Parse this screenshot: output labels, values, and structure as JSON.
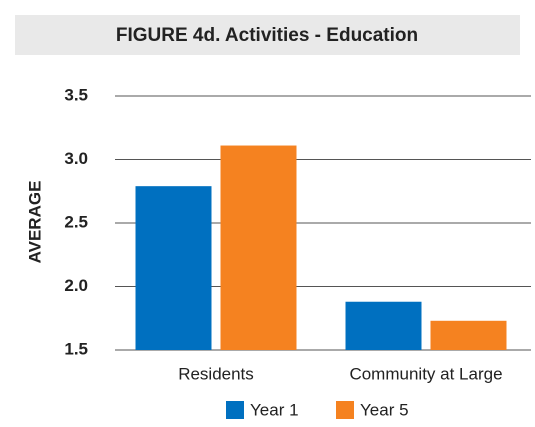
{
  "chart_data": {
    "type": "bar",
    "title": "FIGURE 4d. Activities - Education",
    "y_label": "AVERAGE",
    "categories": [
      "Residents",
      "Community at Large"
    ],
    "series": [
      {
        "name": "Year 1",
        "color": "#0070c0",
        "values": [
          2.79,
          1.88
        ]
      },
      {
        "name": "Year 5",
        "color": "#f58220",
        "values": [
          3.11,
          1.73
        ]
      }
    ],
    "ylim": [
      1.5,
      3.5
    ],
    "yticks": [
      1.5,
      {
        "value": 2,
        "label": "2.0"
      },
      2.5,
      {
        "value": 3,
        "label": "3.0"
      },
      3.5
    ],
    "grid": true,
    "legend": "bottom"
  }
}
